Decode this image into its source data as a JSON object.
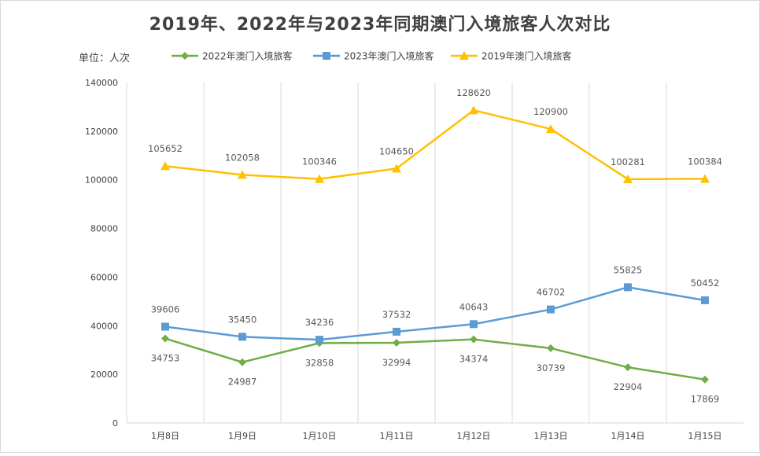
{
  "chart_data": {
    "type": "line",
    "title": "2019年、2022年与2023年同期澳门入境旅客人次对比",
    "unit_label": "单位：人次",
    "categories": [
      "1月8日",
      "1月9日",
      "1月10日",
      "1月11日",
      "1月12日",
      "1月13日",
      "1月14日",
      "1月15日"
    ],
    "ylim": [
      0,
      140000
    ],
    "yticks": [
      0,
      20000,
      40000,
      60000,
      80000,
      100000,
      120000,
      140000
    ],
    "grid": "vertical",
    "legend_position": "top",
    "series": [
      {
        "name": "2022年澳门入境旅客",
        "color": "#70AD47",
        "marker": "diamond",
        "label_position": "below",
        "values": [
          34753,
          24987,
          32858,
          32994,
          34374,
          30739,
          22904,
          17869
        ]
      },
      {
        "name": "2023年澳门入境旅客",
        "color": "#5B9BD5",
        "marker": "square",
        "label_position": "above",
        "values": [
          39606,
          35450,
          34236,
          37532,
          40643,
          46702,
          55825,
          50452
        ]
      },
      {
        "name": "2019年澳门入境旅客",
        "color": "#FFC000",
        "marker": "triangle",
        "label_position": "above",
        "values": [
          105652,
          102058,
          100346,
          104650,
          128620,
          120900,
          100281,
          100384
        ]
      }
    ]
  }
}
